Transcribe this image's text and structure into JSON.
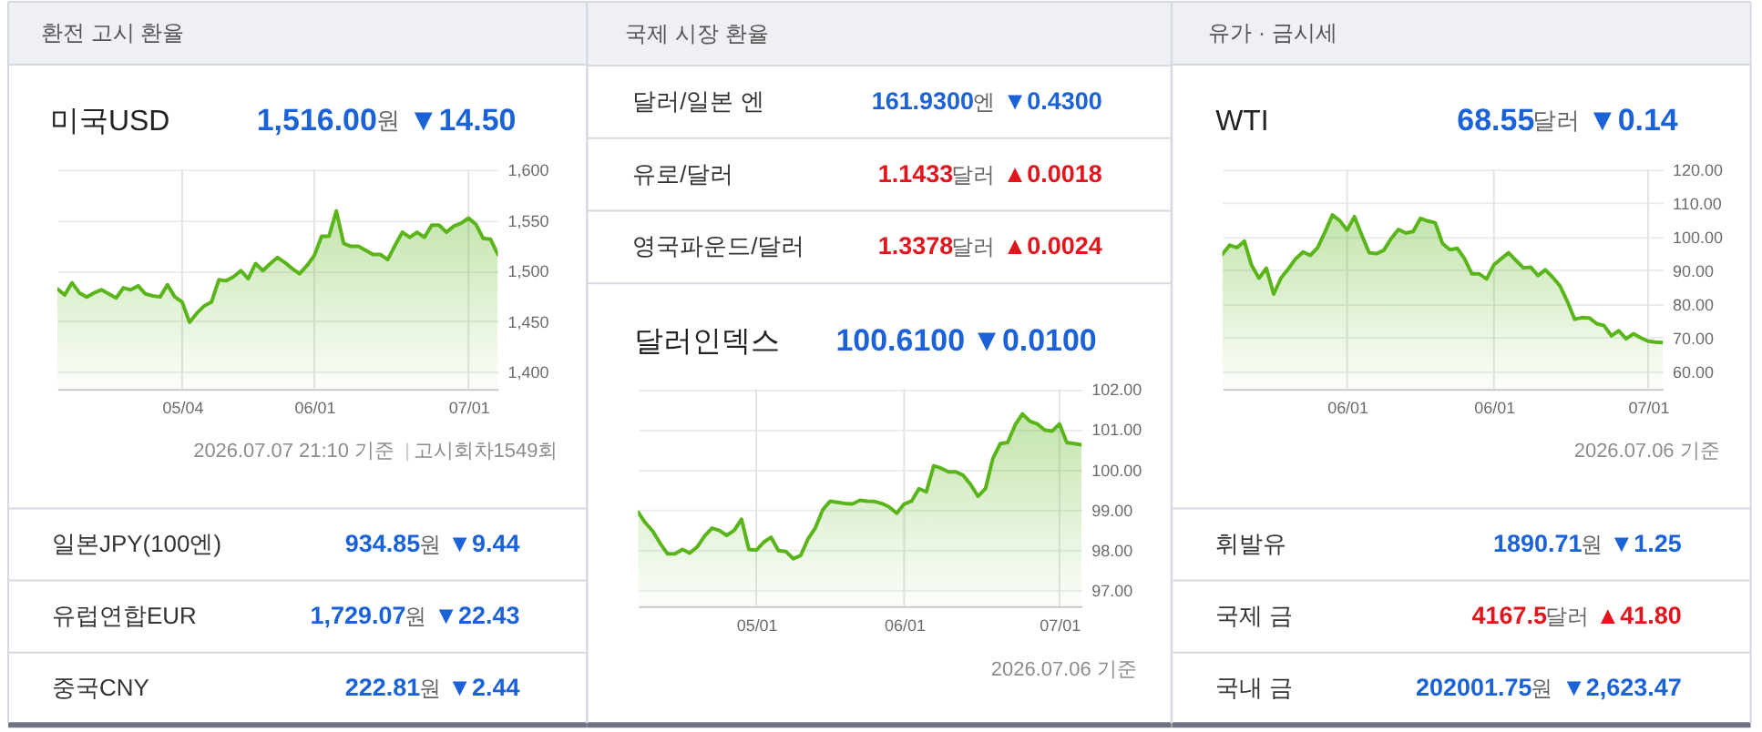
{
  "chart_data": [
    {
      "type": "other",
      "title": "환전 고시 환율"
    },
    {
      "type": "area",
      "title": "미국USD",
      "subtitle": "1,516.00원 ▼14.50",
      "annotations": [
        "2026.07.07 21:10 기준",
        "고시회차1549회"
      ],
      "categories": [
        null,
        null,
        null,
        null,
        null,
        null,
        null,
        null,
        null,
        null,
        null,
        null,
        null,
        null,
        null,
        null,
        null,
        "05/04",
        null,
        null,
        null,
        null,
        null,
        null,
        null,
        null,
        null,
        null,
        null,
        null,
        null,
        null,
        null,
        null,
        null,
        "06/01",
        null,
        null,
        null,
        null,
        null,
        null,
        null,
        null,
        null,
        null,
        null,
        null,
        null,
        null,
        null,
        null,
        null,
        null,
        null,
        null,
        "07/01",
        null,
        null,
        null,
        null
      ],
      "values": [
        1482,
        1476,
        1488,
        1478,
        1474,
        1478,
        1481,
        1477,
        1473,
        1483,
        1481,
        1485,
        1477,
        1475,
        1474,
        1486,
        1474,
        1469,
        1449,
        1458,
        1465,
        1469,
        1491,
        1490,
        1494,
        1500,
        1492,
        1507,
        1500,
        1507,
        1513,
        1508,
        1502,
        1497,
        1505,
        1515,
        1534,
        1534,
        1559,
        1527,
        1524,
        1524,
        1520,
        1516,
        1516,
        1511,
        1525,
        1538,
        1533,
        1538,
        1533,
        1545,
        1545,
        1538,
        1544,
        1547,
        1552,
        1546,
        1532,
        1531,
        1516
      ],
      "color": "#59b51a",
      "ylim": [
        1383,
        1600
      ],
      "yticks": [
        {
          "value": 1400,
          "label": "1,400"
        },
        {
          "value": 1450,
          "label": "1,450"
        },
        {
          "value": 1500,
          "label": "1,500"
        },
        {
          "value": 1550,
          "label": "1,550"
        },
        {
          "value": 1600,
          "label": "1,600"
        }
      ],
      "grid": true
    },
    {
      "type": "other",
      "categories": [
        "일본JPY(100엔)",
        "유럽연합EUR",
        "중국CNY"
      ],
      "annotations": [
        "934.85원 ▼9.44",
        "1,729.07원 ▼22.43",
        "222.81원 ▼2.44"
      ],
      "colors": [
        "#1b62d9",
        "#1b62d9",
        "#1b62d9"
      ]
    },
    {
      "type": "other",
      "title": "국제 시장 환율",
      "categories": [
        "달러/일본 엔",
        "유로/달러",
        "영국파운드/달러"
      ],
      "annotations": [
        "161.9300엔 ▼0.4300",
        "1.1433달러 ▲0.0018",
        "1.3378달러 ▲0.0024"
      ],
      "colors": [
        "#1b62d9",
        "#e2141c",
        "#e2141c"
      ]
    },
    {
      "type": "area",
      "title": "달러인덱스",
      "subtitle": "100.6100 ▼0.0100",
      "annotations": [
        "2026.07.06 기준"
      ],
      "categories": [
        null,
        null,
        null,
        null,
        null,
        null,
        null,
        null,
        null,
        null,
        null,
        null,
        null,
        null,
        null,
        null,
        "05/01",
        null,
        null,
        null,
        null,
        null,
        null,
        null,
        null,
        null,
        null,
        null,
        null,
        null,
        null,
        null,
        null,
        null,
        null,
        null,
        "06/01",
        null,
        null,
        null,
        null,
        null,
        null,
        null,
        null,
        null,
        null,
        null,
        null,
        null,
        null,
        null,
        null,
        null,
        null,
        null,
        null,
        "07/01",
        null,
        null,
        null
      ],
      "values": [
        98.94,
        98.67,
        98.46,
        98.16,
        97.9,
        97.9,
        98.01,
        97.92,
        98.07,
        98.34,
        98.54,
        98.48,
        98.36,
        98.48,
        98.76,
        98.01,
        97.99,
        98.19,
        98.31,
        97.98,
        97.96,
        97.78,
        97.86,
        98.27,
        98.55,
        99.0,
        99.21,
        99.18,
        99.15,
        99.14,
        99.23,
        99.21,
        99.2,
        99.15,
        99.06,
        98.91,
        99.14,
        99.21,
        99.52,
        99.44,
        100.09,
        100.03,
        99.94,
        99.94,
        99.85,
        99.62,
        99.33,
        99.52,
        100.27,
        100.64,
        100.67,
        101.1,
        101.38,
        101.2,
        101.13,
        100.98,
        100.95,
        101.13,
        100.67,
        100.64,
        100.61
      ],
      "color": "#59b51a",
      "ylim": [
        96.6,
        102
      ],
      "yticks": [
        {
          "value": 97,
          "label": "97.00"
        },
        {
          "value": 98,
          "label": "98.00"
        },
        {
          "value": 99,
          "label": "99.00"
        },
        {
          "value": 100,
          "label": "100.00"
        },
        {
          "value": 101,
          "label": "101.00"
        },
        {
          "value": 102,
          "label": "102.00"
        }
      ],
      "grid": true
    },
    {
      "type": "other",
      "title": "유가 · 금시세"
    },
    {
      "type": "area",
      "title": "WTI",
      "subtitle": "68.55달러 ▼0.14",
      "annotations": [
        "2026.07.06 기준"
      ],
      "categories": [
        null,
        null,
        null,
        null,
        null,
        null,
        null,
        null,
        null,
        null,
        null,
        null,
        null,
        null,
        null,
        null,
        null,
        "06/01",
        null,
        null,
        null,
        null,
        null,
        null,
        null,
        null,
        null,
        null,
        null,
        null,
        null,
        null,
        null,
        null,
        null,
        null,
        null,
        "06/01",
        null,
        null,
        null,
        null,
        null,
        null,
        null,
        null,
        null,
        null,
        null,
        null,
        null,
        null,
        null,
        null,
        null,
        null,
        null,
        null,
        "07/01",
        null,
        null
      ],
      "values": [
        94.8,
        97.5,
        96.8,
        98.7,
        91.5,
        87.7,
        90.7,
        83.0,
        87.8,
        90.5,
        93.5,
        95.5,
        94.5,
        96.8,
        101.5,
        106.5,
        104.8,
        102.0,
        106.0,
        100.5,
        95.3,
        95.0,
        96.0,
        99.5,
        102.2,
        101.1,
        101.6,
        105.5,
        104.7,
        104.2,
        98.0,
        96.2,
        96.6,
        93.5,
        89.0,
        89.0,
        87.5,
        91.7,
        93.5,
        95.3,
        93.0,
        90.8,
        91.0,
        88.5,
        90.2,
        88.0,
        85.4,
        80.8,
        75.5,
        76.0,
        75.9,
        74.2,
        73.6,
        70.6,
        72.1,
        69.7,
        71.2,
        70.0,
        69.0,
        68.7,
        68.6
      ],
      "color": "#59b51a",
      "ylim": [
        54.8,
        120
      ],
      "yticks": [
        {
          "value": 60,
          "label": "60.00"
        },
        {
          "value": 70,
          "label": "70.00"
        },
        {
          "value": 80,
          "label": "80.00"
        },
        {
          "value": 90,
          "label": "90.00"
        },
        {
          "value": 100,
          "label": "100.00"
        },
        {
          "value": 110,
          "label": "110.00"
        },
        {
          "value": 120,
          "label": "120.00"
        }
      ],
      "grid": true
    },
    {
      "type": "other",
      "categories": [
        "휘발유",
        "국제 금",
        "국내 금"
      ],
      "annotations": [
        "1890.71원 ▼1.25",
        "4167.5달러 ▲41.80",
        "202001.75원 ▼2,623.47"
      ],
      "colors": [
        "#1b62d9",
        "#e2141c",
        "#1b62d9"
      ]
    }
  ]
}
